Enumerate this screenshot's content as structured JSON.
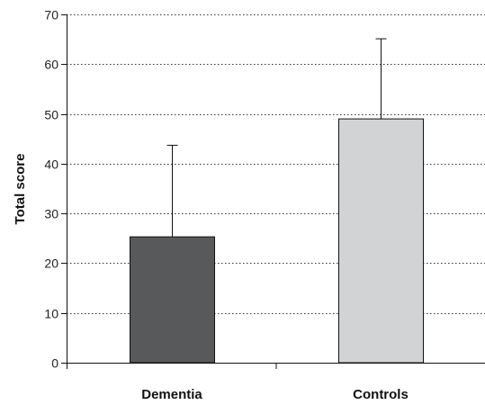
{
  "chart_data": {
    "type": "bar",
    "title": "",
    "xlabel": "",
    "ylabel": "Total score",
    "categories": [
      "Dementia",
      "Controls"
    ],
    "values": [
      25.3,
      49.0
    ],
    "error_upper": [
      18.4,
      16.1
    ],
    "ylim": [
      0,
      70
    ],
    "yticks": [
      0,
      10,
      20,
      30,
      40,
      50,
      60,
      70
    ],
    "grid": "horizontal-dotted",
    "legend": "none",
    "bar_colors": [
      "#58595b",
      "#d1d3d4"
    ],
    "bar_edge_color": "#111111",
    "grid_color": "#333333"
  }
}
